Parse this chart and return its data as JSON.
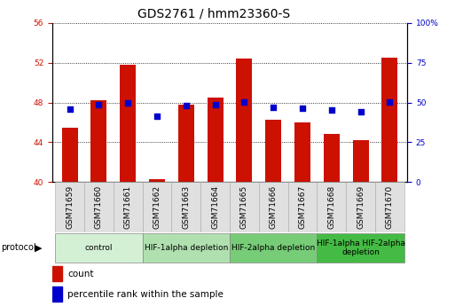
{
  "title": "GDS2761 / hmm23360-S",
  "samples": [
    "GSM71659",
    "GSM71660",
    "GSM71661",
    "GSM71662",
    "GSM71663",
    "GSM71664",
    "GSM71665",
    "GSM71666",
    "GSM71667",
    "GSM71668",
    "GSM71669",
    "GSM71670"
  ],
  "count_values": [
    45.5,
    48.2,
    51.8,
    40.3,
    47.8,
    48.5,
    52.4,
    46.3,
    46.0,
    44.8,
    44.2,
    52.5
  ],
  "percentile_values": [
    46.0,
    48.5,
    49.5,
    41.5,
    47.85,
    48.5,
    50.5,
    46.7,
    46.5,
    45.5,
    44.3,
    50.5
  ],
  "ylim_left": [
    40,
    56
  ],
  "ylim_right": [
    0,
    100
  ],
  "yticks_left": [
    40,
    44,
    48,
    52,
    56
  ],
  "yticks_right": [
    0,
    25,
    50,
    75,
    100
  ],
  "bar_color": "#cc1100",
  "dot_color": "#0000cc",
  "plot_bg": "#ffffff",
  "groups": [
    {
      "label": "control",
      "start": 0,
      "end": 3,
      "color": "#d4f0d4"
    },
    {
      "label": "HIF-1alpha depletion",
      "start": 3,
      "end": 6,
      "color": "#b0e0b0"
    },
    {
      "label": "HIF-2alpha depletion",
      "start": 6,
      "end": 9,
      "color": "#77cc77"
    },
    {
      "label": "HIF-1alpha HIF-2alpha\ndepletion",
      "start": 9,
      "end": 12,
      "color": "#44bb44"
    }
  ],
  "bar_width": 0.55,
  "dot_size": 22,
  "title_fontsize": 10,
  "tick_fontsize": 6.5,
  "group_fontsize": 6.5,
  "legend_fontsize": 7.5
}
